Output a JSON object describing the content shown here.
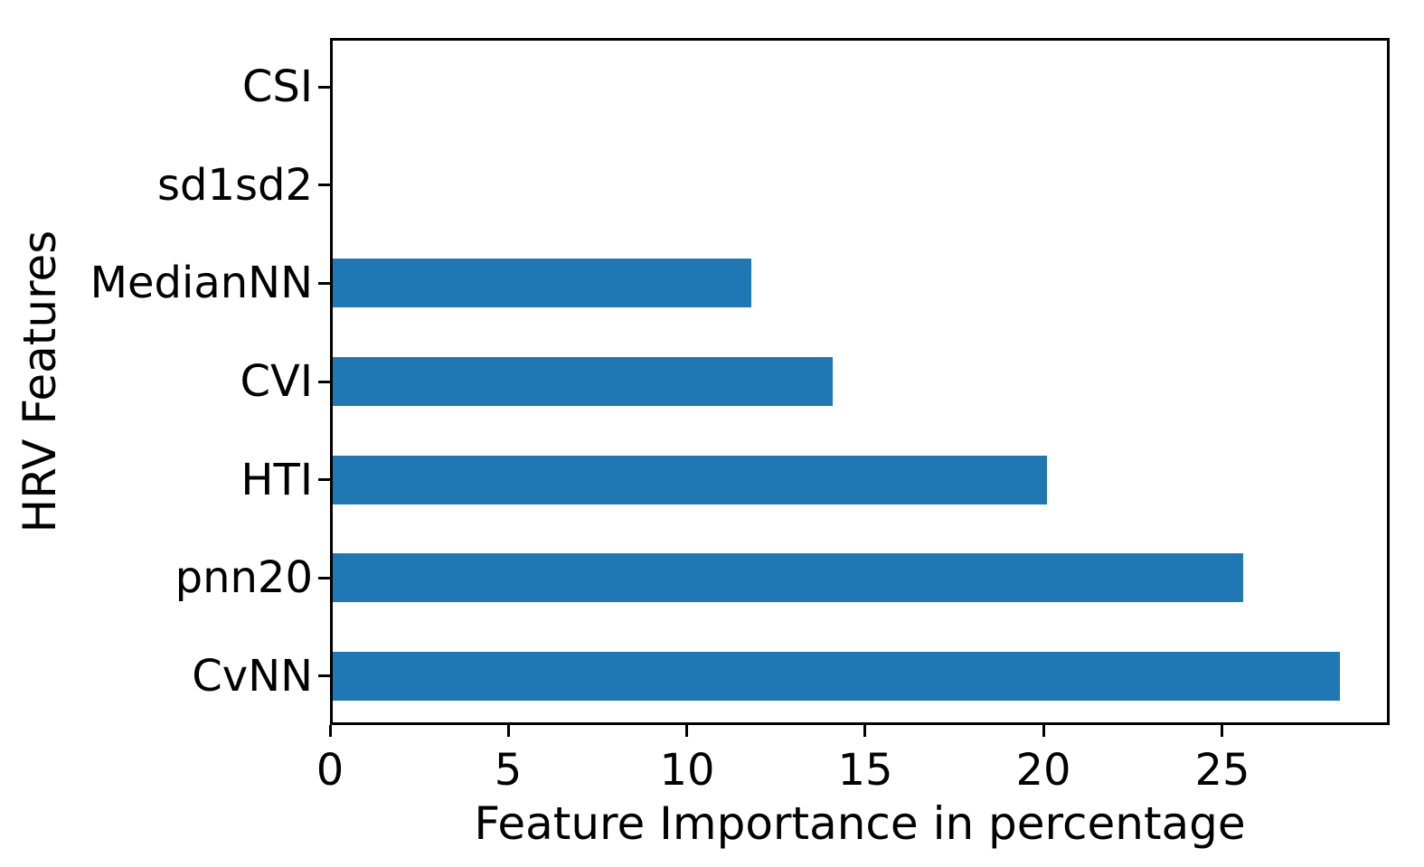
{
  "figure": {
    "background": "#ffffff"
  },
  "chart_data": {
    "type": "bar",
    "orientation": "horizontal",
    "title": "",
    "xlabel": "Feature Importance in percentage",
    "ylabel": "HRV Features",
    "categories": [
      "CSI",
      "sd1sd2",
      "MedianNN",
      "CVI",
      "HTI",
      "pnn20",
      "CvNN"
    ],
    "values": [
      0,
      0,
      11.8,
      14.1,
      20.1,
      25.6,
      28.3
    ],
    "xlim": [
      0,
      29.7
    ],
    "xticks": [
      0,
      5,
      10,
      15,
      20,
      25
    ],
    "bar_color": "#1f77b4",
    "axis_color": "#000000",
    "text_color": "#000000",
    "grid": false,
    "legend": null
  }
}
